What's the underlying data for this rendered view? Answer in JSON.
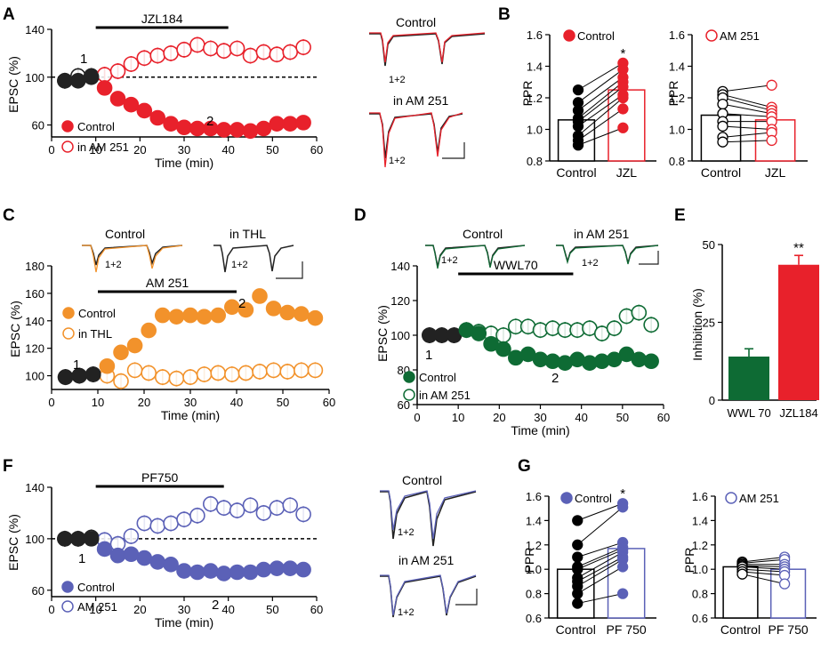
{
  "panel_labels": {
    "A": "A",
    "B": "B",
    "C": "C",
    "D": "D",
    "E": "E",
    "F": "F",
    "G": "G"
  },
  "colors": {
    "red": "#e8212b",
    "orange": "#f2922b",
    "green": "#0e6b34",
    "blue": "#5b61b7",
    "black": "#222222"
  },
  "traces": {
    "A": {
      "top": "Control",
      "bottom": "in AM 251",
      "label_top": "1+2",
      "label_bottom": "1+2"
    },
    "C": {
      "left": "Control",
      "right": "in THL",
      "label_left": "1+2",
      "label_right": "1+2"
    },
    "D": {
      "left": "Control",
      "right": "in AM 251",
      "label_left": "1+2",
      "label_right": "1+2"
    },
    "F": {
      "top": "Control",
      "bottom": "in AM 251",
      "label_top": "1+2",
      "label_bottom": "1+2"
    }
  },
  "chart_data": [
    {
      "id": "A",
      "type": "scatter",
      "title": "",
      "xlabel": "Time (min)",
      "ylabel": "EPSC (%)",
      "xlim": [
        0,
        60
      ],
      "ylim": [
        50,
        140
      ],
      "xticks": [
        "0",
        "10",
        "20",
        "30",
        "40",
        "50",
        "60"
      ],
      "yticks": [
        "60",
        "100",
        "140"
      ],
      "drug_bar": {
        "label": "JZL184",
        "x": [
          10,
          40
        ]
      },
      "baseline": 100,
      "annotations": {
        "one": "1",
        "two": "2"
      },
      "legend": [
        "Control",
        "in AM 251"
      ],
      "series": [
        {
          "name": "Control",
          "style": "filled",
          "color": "#e8212b",
          "x": [
            3,
            6,
            9,
            12,
            15,
            18,
            21,
            24,
            27,
            30,
            33,
            36,
            39,
            42,
            45,
            48,
            51,
            54,
            57
          ],
          "y": [
            97,
            97,
            100,
            91,
            82,
            77,
            72,
            66,
            61,
            58,
            57,
            57,
            56,
            56,
            55,
            57,
            61,
            61,
            62
          ]
        },
        {
          "name": "in AM 251",
          "style": "open",
          "color": "#e8212b",
          "x": [
            3,
            6,
            9,
            12,
            15,
            18,
            21,
            24,
            27,
            30,
            33,
            36,
            39,
            42,
            45,
            48,
            51,
            54,
            57
          ],
          "y": [
            97,
            101,
            101,
            102,
            105,
            111,
            116,
            118,
            120,
            123,
            127,
            124,
            122,
            124,
            118,
            121,
            119,
            121,
            125
          ]
        }
      ]
    },
    {
      "id": "B1",
      "type": "bar",
      "ylabel": "PPR",
      "ylim": [
        0.8,
        1.6
      ],
      "yticks": [
        "0.8",
        "1.0",
        "1.2",
        "1.4",
        "1.6"
      ],
      "categories": [
        "Control",
        "JZL"
      ],
      "legend": "Control",
      "significance": "*",
      "values": [
        1.06,
        1.25
      ],
      "pairs": [
        [
          1.25,
          1.42
        ],
        [
          1.17,
          1.38
        ],
        [
          1.12,
          1.33
        ],
        [
          1.07,
          1.3
        ],
        [
          1.05,
          1.27
        ],
        [
          1.02,
          1.22
        ],
        [
          0.96,
          1.2
        ],
        [
          0.93,
          1.13
        ],
        [
          0.9,
          1.01
        ]
      ]
    },
    {
      "id": "B2",
      "type": "bar",
      "ylabel": "PPR",
      "ylim": [
        0.8,
        1.6
      ],
      "yticks": [
        "0.8",
        "1.0",
        "1.2",
        "1.4",
        "1.6"
      ],
      "categories": [
        "Control",
        "JZL"
      ],
      "legend": "AM 251",
      "values": [
        1.09,
        1.06
      ],
      "pairs": [
        [
          1.24,
          1.28
        ],
        [
          1.22,
          1.14
        ],
        [
          1.2,
          1.12
        ],
        [
          1.16,
          1.1
        ],
        [
          1.1,
          1.08
        ],
        [
          1.05,
          1.05
        ],
        [
          1.02,
          1.0
        ],
        [
          0.95,
          0.98
        ],
        [
          0.92,
          0.93
        ]
      ]
    },
    {
      "id": "C",
      "type": "scatter",
      "title": "",
      "xlabel": "Time (min)",
      "ylabel": "EPSC (%)",
      "xlim": [
        0,
        60
      ],
      "ylim": [
        90,
        180
      ],
      "xticks": [
        "0",
        "10",
        "20",
        "30",
        "40",
        "50",
        "60"
      ],
      "yticks": [
        "100",
        "120",
        "140",
        "160",
        "180"
      ],
      "drug_bar": {
        "label": "AM 251",
        "x": [
          10,
          40
        ]
      },
      "annotations": {
        "one": "1",
        "two": "2"
      },
      "legend": [
        "Control",
        "in THL"
      ],
      "series": [
        {
          "name": "Control",
          "style": "filled",
          "color": "#f2922b",
          "x": [
            3,
            6,
            9,
            12,
            15,
            18,
            21,
            24,
            27,
            30,
            33,
            36,
            39,
            42,
            45,
            48,
            51,
            54,
            57
          ],
          "y": [
            99,
            100,
            101,
            107,
            117,
            122,
            133,
            144,
            143,
            144,
            143,
            144,
            150,
            148,
            158,
            149,
            146,
            145,
            142
          ]
        },
        {
          "name": "in THL",
          "style": "open",
          "color": "#f2922b",
          "x": [
            3,
            6,
            9,
            12,
            15,
            18,
            21,
            24,
            27,
            30,
            33,
            36,
            39,
            42,
            45,
            48,
            51,
            54,
            57
          ],
          "y": [
            99,
            100,
            101,
            100,
            96,
            104,
            102,
            99,
            98,
            99,
            101,
            102,
            101,
            102,
            103,
            104,
            103,
            104,
            104
          ]
        }
      ]
    },
    {
      "id": "D",
      "type": "scatter",
      "title": "",
      "xlabel": "Time (min)",
      "ylabel": "EPSC (%)",
      "xlim": [
        0,
        60
      ],
      "ylim": [
        60,
        140
      ],
      "xticks": [
        "0",
        "10",
        "20",
        "30",
        "40",
        "50",
        "60"
      ],
      "yticks": [
        "60",
        "80",
        "100",
        "120",
        "140"
      ],
      "drug_bar": {
        "label": "WWL70",
        "x": [
          10,
          38
        ]
      },
      "annotations": {
        "one": "1",
        "two": "2"
      },
      "legend": [
        "Control",
        "in AM 251"
      ],
      "series": [
        {
          "name": "Control",
          "style": "filled",
          "color": "#0e6b34",
          "x": [
            3,
            6,
            9,
            12,
            15,
            18,
            21,
            24,
            27,
            30,
            33,
            36,
            39,
            42,
            45,
            48,
            51,
            54,
            57
          ],
          "y": [
            100,
            100,
            100,
            103,
            101,
            95,
            92,
            87,
            89,
            86,
            85,
            84,
            86,
            84,
            85,
            86,
            89,
            86,
            85
          ]
        },
        {
          "name": "in AM 251",
          "style": "open",
          "color": "#0e6b34",
          "x": [
            3,
            6,
            9,
            12,
            15,
            18,
            21,
            24,
            27,
            30,
            33,
            36,
            39,
            42,
            45,
            48,
            51,
            54,
            57
          ],
          "y": [
            100,
            100,
            100,
            103,
            102,
            101,
            100,
            105,
            105,
            103,
            104,
            103,
            103,
            104,
            101,
            104,
            111,
            113,
            106
          ]
        }
      ]
    },
    {
      "id": "E",
      "type": "bar",
      "ylabel": "Inhibition (%)",
      "ylim": [
        0,
        50
      ],
      "yticks": [
        "0",
        "25",
        "50"
      ],
      "categories": [
        "WWL 70",
        "JZL184"
      ],
      "values": [
        14,
        43.5
      ],
      "errors": [
        2.5,
        3
      ],
      "significance": "**"
    },
    {
      "id": "F",
      "type": "scatter",
      "title": "",
      "xlabel": "Time (min)",
      "ylabel": "EPSC (%)",
      "xlim": [
        0,
        60
      ],
      "ylim": [
        55,
        140
      ],
      "xticks": [
        "0",
        "10",
        "20",
        "30",
        "40",
        "50",
        "60"
      ],
      "yticks": [
        "60",
        "100",
        "140"
      ],
      "drug_bar": {
        "label": "PF750",
        "x": [
          10,
          39
        ]
      },
      "baseline": 100,
      "annotations": {
        "one": "1",
        "two": "2"
      },
      "legend": [
        "Control",
        "AM 251"
      ],
      "series": [
        {
          "name": "Control",
          "style": "filled",
          "color": "#5b61b7",
          "x": [
            3,
            6,
            9,
            12,
            15,
            18,
            21,
            24,
            27,
            30,
            33,
            36,
            39,
            42,
            45,
            48,
            51,
            54,
            57
          ],
          "y": [
            100,
            100,
            100,
            92,
            87,
            88,
            85,
            82,
            80,
            75,
            74,
            75,
            73,
            74,
            74,
            76,
            77,
            77,
            76
          ]
        },
        {
          "name": "AM 251",
          "style": "open",
          "color": "#5b61b7",
          "x": [
            3,
            6,
            9,
            12,
            15,
            18,
            21,
            24,
            27,
            30,
            33,
            36,
            39,
            42,
            45,
            48,
            51,
            54,
            57
          ],
          "y": [
            100,
            100,
            101,
            99,
            96,
            102,
            112,
            110,
            112,
            115,
            118,
            127,
            124,
            122,
            126,
            120,
            124,
            126,
            119
          ]
        }
      ]
    },
    {
      "id": "G1",
      "type": "bar",
      "ylabel": "PPR",
      "ylim": [
        0.6,
        1.6
      ],
      "yticks": [
        "0.6",
        "0.8",
        "1.0",
        "1.2",
        "1.4",
        "1.6"
      ],
      "categories": [
        "Control",
        "PF 750"
      ],
      "legend": "Control",
      "significance": "*",
      "values": [
        1.0,
        1.17
      ],
      "pairs": [
        [
          1.4,
          1.54
        ],
        [
          1.2,
          1.51
        ],
        [
          1.1,
          1.22
        ],
        [
          1.02,
          1.18
        ],
        [
          1.0,
          1.16
        ],
        [
          0.93,
          1.14
        ],
        [
          0.9,
          1.1
        ],
        [
          0.86,
          1.08
        ],
        [
          0.8,
          1.02
        ],
        [
          0.72,
          0.8
        ]
      ]
    },
    {
      "id": "G2",
      "type": "bar",
      "ylabel": "PPR",
      "ylim": [
        0.6,
        1.6
      ],
      "yticks": [
        "0.6",
        "0.8",
        "1.0",
        "1.2",
        "1.4",
        "1.6"
      ],
      "categories": [
        "Control",
        "PF 750"
      ],
      "legend": "AM 251",
      "values": [
        1.02,
        1.0
      ],
      "pairs": [
        [
          1.06,
          1.1
        ],
        [
          1.05,
          1.08
        ],
        [
          1.04,
          1.04
        ],
        [
          1.03,
          1.02
        ],
        [
          1.02,
          1.0
        ],
        [
          1.0,
          0.98
        ],
        [
          0.98,
          0.95
        ],
        [
          0.96,
          0.88
        ]
      ]
    }
  ]
}
